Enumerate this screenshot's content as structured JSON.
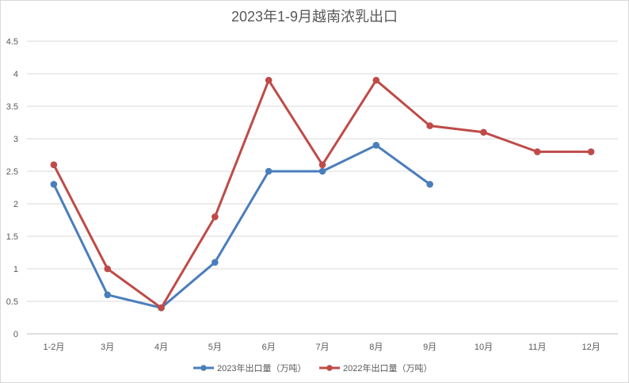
{
  "chart_data": {
    "type": "line",
    "title": "2023年1-9月越南浓乳出口",
    "categories": [
      "1-2月",
      "3月",
      "4月",
      "5月",
      "6月",
      "7月",
      "8月",
      "9月",
      "10月",
      "11月",
      "12月"
    ],
    "series": [
      {
        "name": "2023年出口量（万吨）",
        "color": "#4a7ebb",
        "values": [
          2.3,
          0.6,
          0.4,
          1.1,
          2.5,
          2.5,
          2.9,
          2.3,
          null,
          null,
          null
        ]
      },
      {
        "name": "2022年出口量（万吨）",
        "color": "#be4b48",
        "values": [
          2.6,
          1.0,
          0.4,
          1.8,
          3.9,
          2.6,
          3.9,
          3.2,
          3.1,
          2.8,
          2.8
        ]
      }
    ],
    "ylim": [
      0,
      4.5
    ],
    "yticks": [
      "0",
      "0.5",
      "1",
      "1.5",
      "2",
      "2.5",
      "3",
      "3.5",
      "4",
      "4.5"
    ],
    "grid": true,
    "legend_position": "bottom"
  }
}
